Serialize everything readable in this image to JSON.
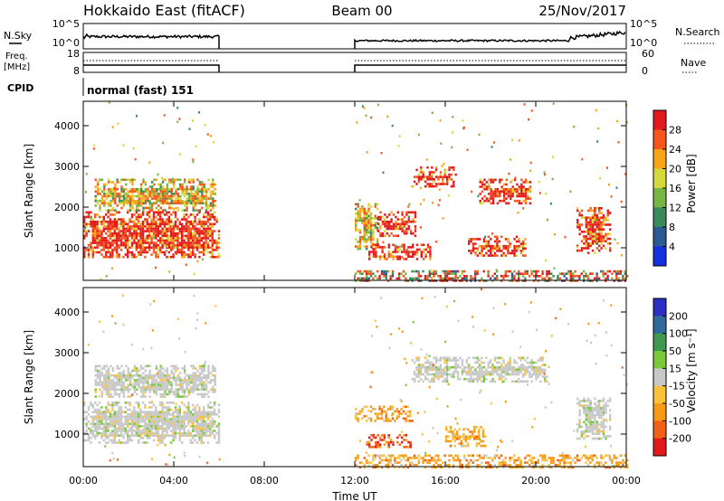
{
  "header": {
    "station": "Hokkaido East (fitACF)",
    "beam": "Beam 00",
    "date": "25/Nov/2017"
  },
  "status_panels": {
    "nsky_label": "N.Sky",
    "nsearch_label": "N.Search",
    "noise_ticks": [
      "10^5",
      "10^0"
    ],
    "freq_label_1": "Freq.",
    "freq_label_2": "[MHz]",
    "freq_ticks": [
      "18",
      "8"
    ],
    "nave_label": "Nave",
    "nave_ticks": [
      "60",
      "0"
    ],
    "cpid_label": "CPID",
    "cpid_text": "normal (fast) 151"
  },
  "colorbars": {
    "power": {
      "label": "Power [dB]",
      "ticks": [
        "28",
        "24",
        "20",
        "16",
        "12",
        "8",
        "4"
      ],
      "colors": [
        "#e31a1c",
        "#f4561c",
        "#f9a416",
        "#d6d93a",
        "#77b544",
        "#3a8a5a",
        "#2c5a92",
        "#1131e0"
      ]
    },
    "velocity": {
      "label": "Velocity [m s⁻¹]",
      "ticks": [
        "200",
        "100",
        "50",
        "15",
        "-15",
        "-50",
        "-100",
        "-200"
      ],
      "colors": [
        "#2b2fc4",
        "#2f6a9a",
        "#3f9a50",
        "#79c93a",
        "#c8c8c8",
        "#f9c23a",
        "#f79a16",
        "#f2601a",
        "#e31a1c"
      ]
    }
  },
  "chart_data": [
    {
      "type": "heatmap",
      "name": "power",
      "ylabel": "Slant Range [km]",
      "y_ticks": [
        1000,
        2000,
        3000,
        4000
      ],
      "ylim": [
        200,
        4600
      ],
      "xlim_hours": [
        0,
        24
      ],
      "data_gap_hours": [
        6,
        12
      ],
      "regions": [
        {
          "t0": 0.0,
          "t1": 6.0,
          "r0": 800,
          "r1": 1900,
          "level": "high"
        },
        {
          "t0": 0.5,
          "t1": 5.8,
          "r0": 1900,
          "r1": 2700,
          "level": "mid"
        },
        {
          "t0": 12.0,
          "t1": 13.0,
          "r0": 1000,
          "r1": 2100,
          "level": "mid"
        },
        {
          "t0": 12.6,
          "t1": 15.3,
          "r0": 700,
          "r1": 1100,
          "level": "high"
        },
        {
          "t0": 13.0,
          "t1": 14.7,
          "r0": 1300,
          "r1": 1900,
          "level": "high"
        },
        {
          "t0": 14.5,
          "t1": 16.5,
          "r0": 2500,
          "r1": 3000,
          "level": "high"
        },
        {
          "t0": 17.5,
          "t1": 19.8,
          "r0": 2100,
          "r1": 2700,
          "level": "high"
        },
        {
          "t0": 17.0,
          "t1": 19.5,
          "r0": 800,
          "r1": 1300,
          "level": "high"
        },
        {
          "t0": 21.8,
          "t1": 23.3,
          "r0": 900,
          "r1": 2000,
          "level": "high"
        },
        {
          "t0": 12.0,
          "t1": 24.0,
          "r0": 200,
          "r1": 450,
          "level": "low"
        }
      ]
    },
    {
      "type": "heatmap",
      "name": "velocity",
      "ylabel": "Slant Range [km]",
      "y_ticks": [
        1000,
        2000,
        3000,
        4000
      ],
      "ylim": [
        200,
        4600
      ],
      "xlim_hours": [
        0,
        24
      ],
      "x_ticks": [
        "00:00",
        "04:00",
        "08:00",
        "12:00",
        "16:00",
        "20:00",
        "00:00"
      ],
      "xlabel": "Time UT",
      "data_gap_hours": [
        6,
        12
      ],
      "regions": [
        {
          "t0": 0.0,
          "t1": 6.0,
          "r0": 800,
          "r1": 1800,
          "level": "ground"
        },
        {
          "t0": 0.5,
          "t1": 5.8,
          "r0": 1900,
          "r1": 2700,
          "level": "ground"
        },
        {
          "t0": 12.0,
          "t1": 14.5,
          "r0": 1300,
          "r1": 1700,
          "level": "neg"
        },
        {
          "t0": 12.5,
          "t1": 14.5,
          "r0": 700,
          "r1": 1000,
          "level": "strongneg"
        },
        {
          "t0": 16.0,
          "t1": 17.8,
          "r0": 700,
          "r1": 1200,
          "level": "neg"
        },
        {
          "t0": 14.5,
          "t1": 20.5,
          "r0": 2300,
          "r1": 2900,
          "level": "ground"
        },
        {
          "t0": 21.8,
          "t1": 23.3,
          "r0": 900,
          "r1": 1900,
          "level": "ground"
        },
        {
          "t0": 12.0,
          "t1": 24.0,
          "r0": 200,
          "r1": 500,
          "level": "neg"
        }
      ]
    }
  ]
}
